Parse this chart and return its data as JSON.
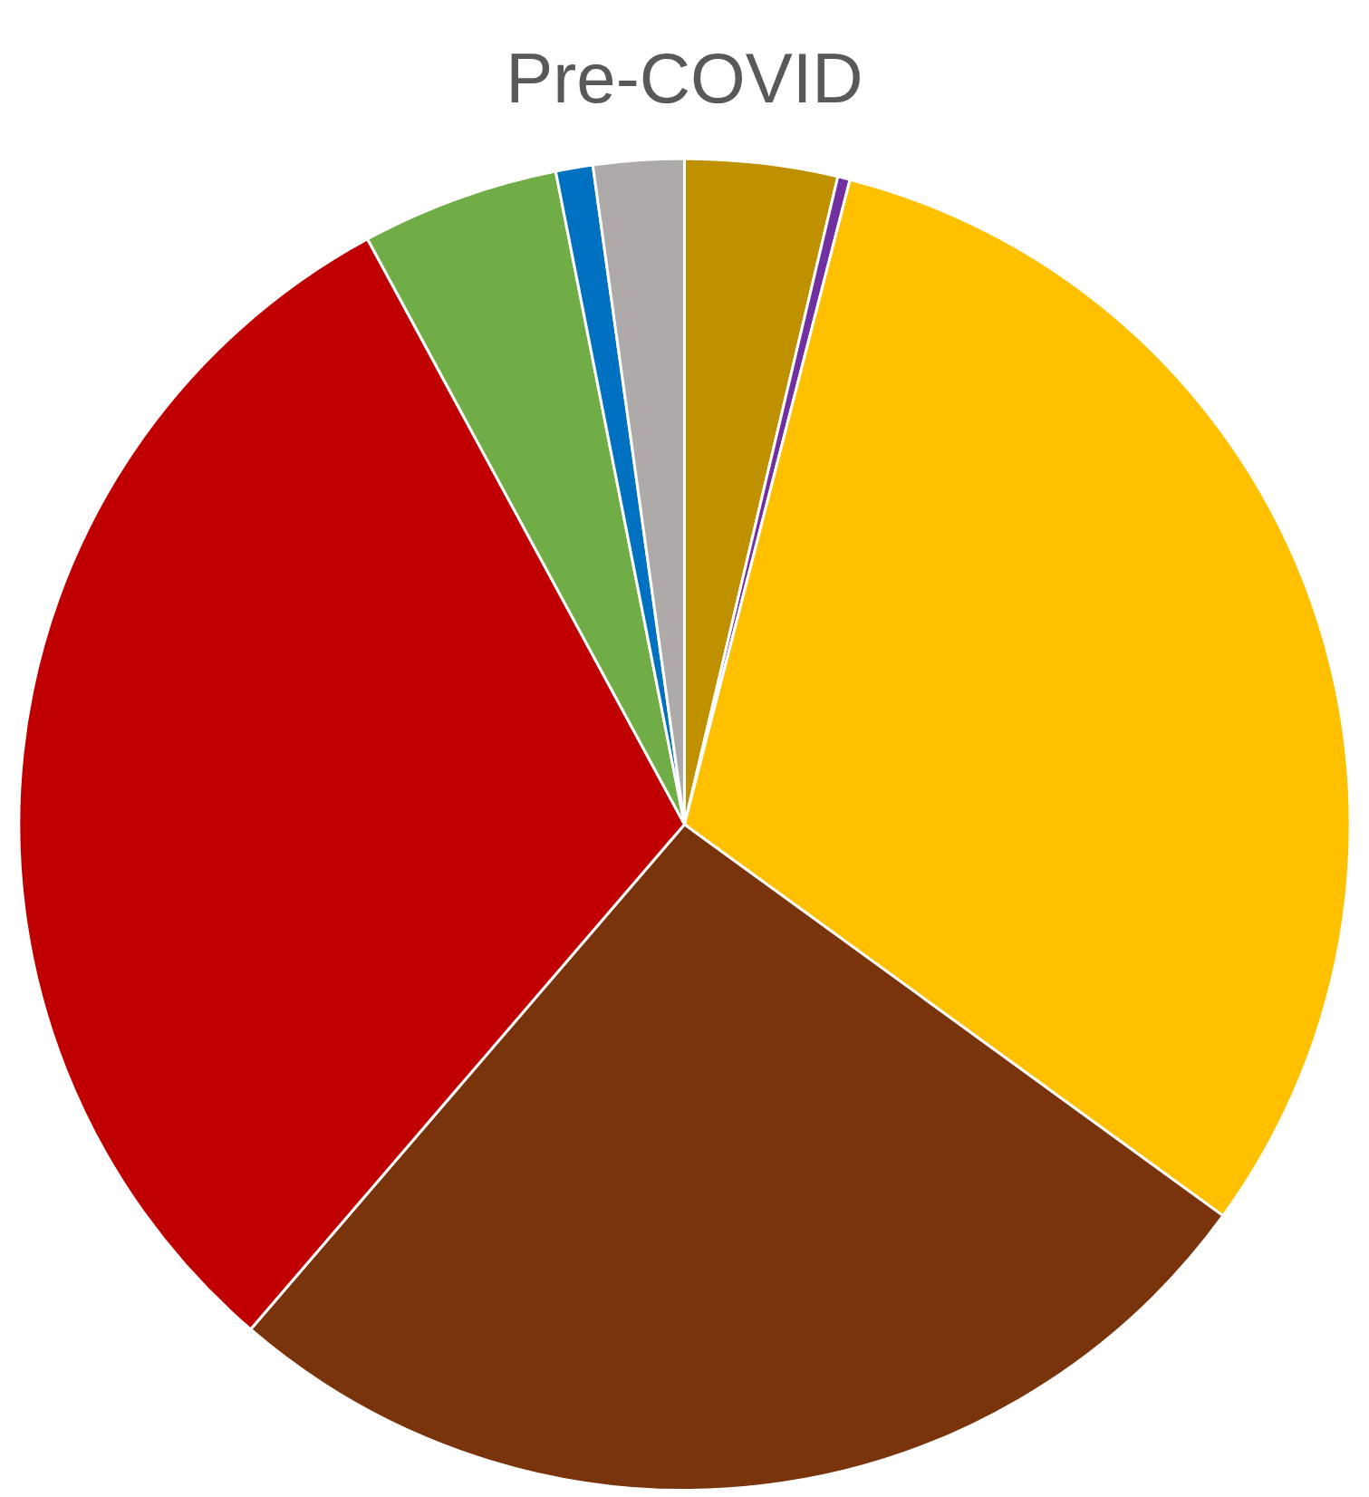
{
  "chart_data": {
    "type": "pie",
    "title": "Pre-COVID",
    "categories": [
      null,
      null,
      null,
      null,
      null,
      null,
      null,
      null
    ],
    "values": [
      3.7,
      0.3,
      31.0,
      26.3,
      30.8,
      4.8,
      0.9,
      2.2
    ],
    "colors": [
      "#bf9000",
      "#7030a0",
      "#ffc000",
      "#7a340c",
      "#c00000",
      "#70ad47",
      "#0070c0",
      "#aeaaaa"
    ],
    "legend": false
  }
}
